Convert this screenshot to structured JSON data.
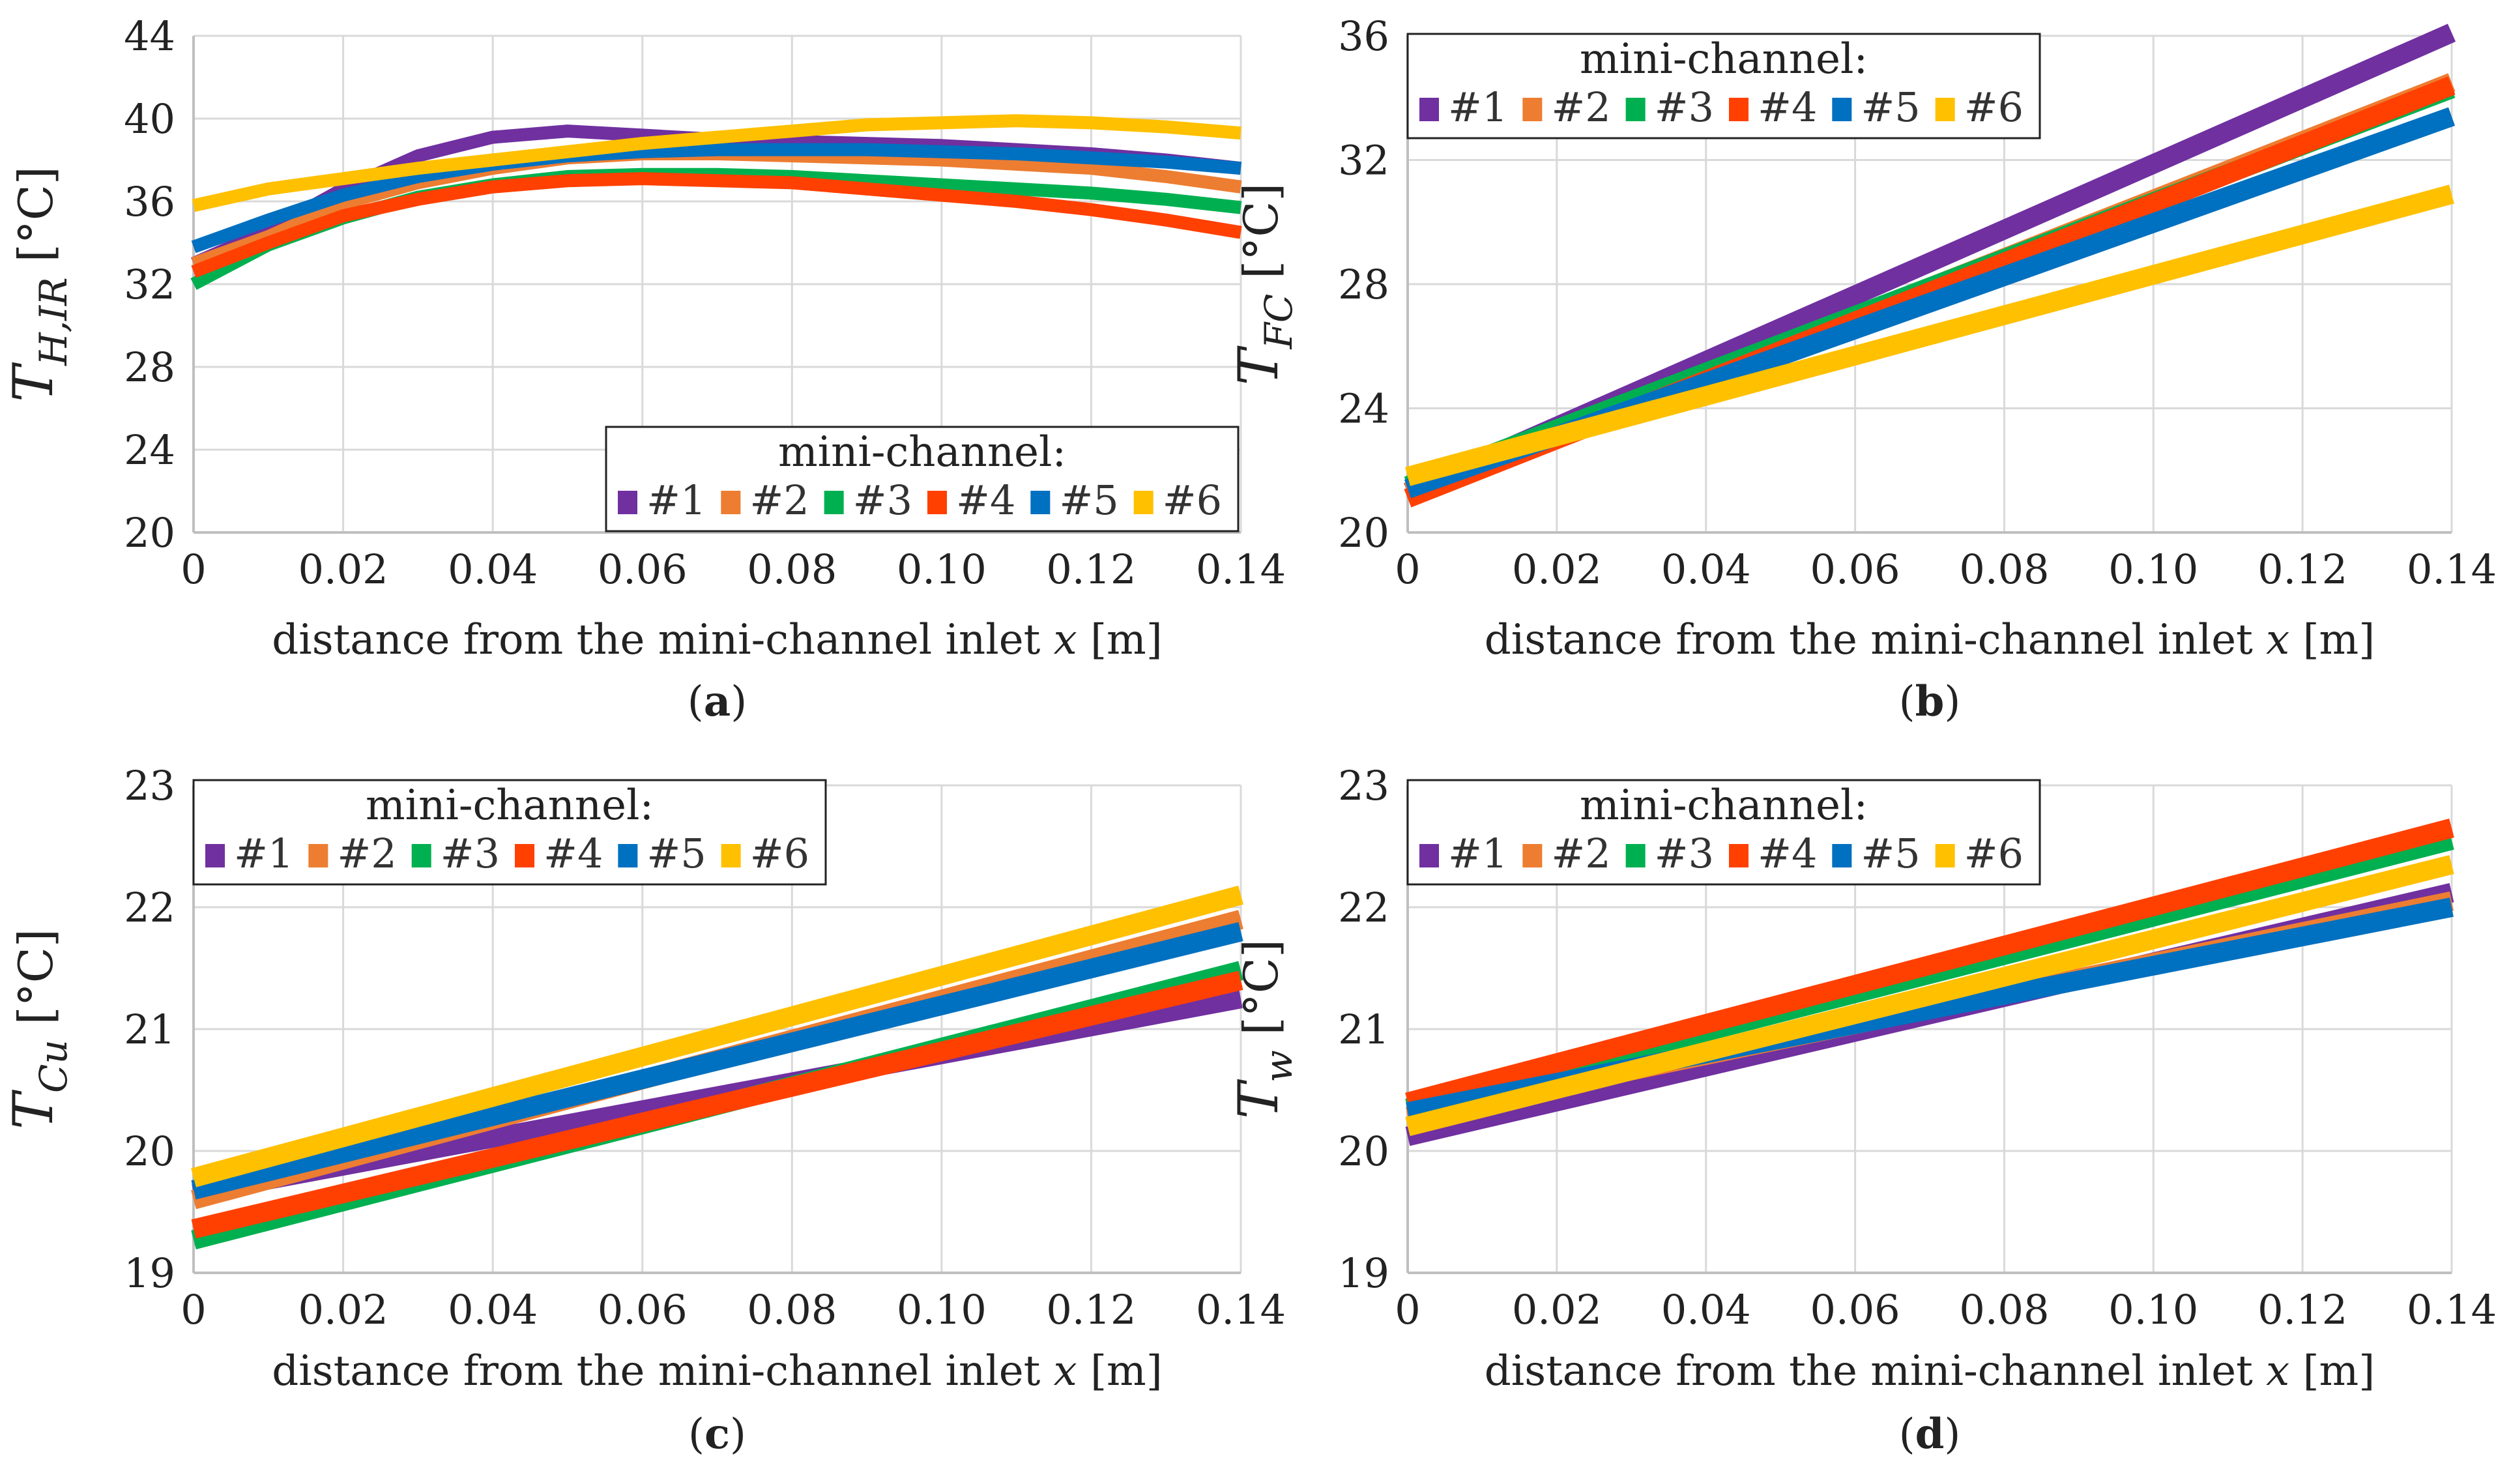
{
  "colors": {
    "s1": "#7030A0",
    "s2": "#ED7D31",
    "s3": "#00B050",
    "s4": "#FF4000",
    "s5": "#0070C0",
    "s6": "#FFC000",
    "grid": "#d9d9d9",
    "axis": "#bfbfbf"
  },
  "chart_data": [
    {
      "type": "line",
      "panel_label": "a",
      "title": "",
      "xlabel_prefix": "distance from the mini-channel inlet ",
      "xlabel_var": "x",
      "xlabel_unit": " [m]",
      "ylabel_main": "T",
      "ylabel_sub": "H,IR",
      "ylabel_unit": "[°C]",
      "xlim": [
        0,
        0.14
      ],
      "ylim": [
        20,
        44
      ],
      "xticks": [
        "0",
        "0.02",
        "0.04",
        "0.06",
        "0.08",
        "0.10",
        "0.12",
        "0.14"
      ],
      "yticks": [
        "20",
        "24",
        "28",
        "32",
        "36",
        "40",
        "44"
      ],
      "legend": {
        "title": "mini-channel:",
        "position": "bottom-right"
      },
      "series": [
        {
          "name": "#1",
          "x": [
            0,
            0.01,
            0.02,
            0.03,
            0.04,
            0.05,
            0.06,
            0.07,
            0.08,
            0.09,
            0.1,
            0.11,
            0.12,
            0.13,
            0.14
          ],
          "values": [
            33.0,
            34.6,
            36.6,
            38.2,
            39.1,
            39.4,
            39.2,
            39.0,
            38.9,
            38.8,
            38.7,
            38.5,
            38.3,
            38.0,
            37.6
          ]
        },
        {
          "name": "#2",
          "x": [
            0,
            0.01,
            0.02,
            0.03,
            0.04,
            0.05,
            0.06,
            0.07,
            0.08,
            0.09,
            0.1,
            0.11,
            0.12,
            0.13,
            0.14
          ],
          "values": [
            33.0,
            34.3,
            35.9,
            36.9,
            37.6,
            38.1,
            38.3,
            38.3,
            38.2,
            38.1,
            38.0,
            37.8,
            37.6,
            37.2,
            36.7
          ]
        },
        {
          "name": "#3",
          "x": [
            0,
            0.01,
            0.02,
            0.03,
            0.04,
            0.05,
            0.06,
            0.07,
            0.08,
            0.09,
            0.1,
            0.11,
            0.12,
            0.13,
            0.14
          ],
          "values": [
            32.0,
            33.9,
            35.2,
            36.2,
            36.8,
            37.2,
            37.3,
            37.3,
            37.2,
            37.0,
            36.8,
            36.6,
            36.4,
            36.1,
            35.7
          ]
        },
        {
          "name": "#4",
          "x": [
            0,
            0.01,
            0.02,
            0.03,
            0.04,
            0.05,
            0.06,
            0.07,
            0.08,
            0.09,
            0.1,
            0.11,
            0.12,
            0.13,
            0.14
          ],
          "values": [
            32.6,
            34.0,
            35.3,
            36.1,
            36.7,
            37.0,
            37.1,
            37.0,
            36.9,
            36.6,
            36.3,
            36.0,
            35.6,
            35.1,
            34.5
          ]
        },
        {
          "name": "#5",
          "x": [
            0,
            0.01,
            0.02,
            0.03,
            0.04,
            0.05,
            0.06,
            0.07,
            0.08,
            0.09,
            0.1,
            0.11,
            0.12,
            0.13,
            0.14
          ],
          "values": [
            33.8,
            35.1,
            36.3,
            37.2,
            37.8,
            38.2,
            38.4,
            38.5,
            38.5,
            38.5,
            38.4,
            38.3,
            38.1,
            37.9,
            37.6
          ]
        },
        {
          "name": "#6",
          "x": [
            0,
            0.01,
            0.02,
            0.03,
            0.04,
            0.05,
            0.06,
            0.07,
            0.08,
            0.09,
            0.1,
            0.11,
            0.12,
            0.13,
            0.14
          ],
          "values": [
            35.8,
            36.6,
            37.1,
            37.6,
            38.0,
            38.4,
            38.8,
            39.1,
            39.4,
            39.7,
            39.8,
            39.9,
            39.8,
            39.6,
            39.3
          ]
        }
      ]
    },
    {
      "type": "line",
      "panel_label": "b",
      "title": "",
      "xlabel_prefix": "distance from the mini-channel inlet ",
      "xlabel_var": "x",
      "xlabel_unit": " [m]",
      "ylabel_main": "T",
      "ylabel_sub": "FC",
      "ylabel_unit": "[°C]",
      "xlim": [
        0,
        0.14
      ],
      "ylim": [
        20,
        36
      ],
      "xticks": [
        "0",
        "0.02",
        "0.04",
        "0.06",
        "0.08",
        "0.10",
        "0.12",
        "0.14"
      ],
      "yticks": [
        "20",
        "24",
        "28",
        "32",
        "36"
      ],
      "legend": {
        "title": "mini-channel:",
        "position": "top-left"
      },
      "series": [
        {
          "name": "#1",
          "x": [
            0,
            0.14
          ],
          "values": [
            21.3,
            36.1
          ]
        },
        {
          "name": "#2",
          "x": [
            0,
            0.14
          ],
          "values": [
            21.3,
            34.5
          ]
        },
        {
          "name": "#3",
          "x": [
            0,
            0.14
          ],
          "values": [
            21.5,
            34.3
          ]
        },
        {
          "name": "#4",
          "x": [
            0,
            0.14
          ],
          "values": [
            21.1,
            34.4
          ]
        },
        {
          "name": "#5",
          "x": [
            0,
            0.14
          ],
          "values": [
            21.4,
            33.4
          ]
        },
        {
          "name": "#6",
          "x": [
            0,
            0.14
          ],
          "values": [
            21.8,
            30.9
          ]
        }
      ]
    },
    {
      "type": "line",
      "panel_label": "c",
      "title": "",
      "xlabel_prefix": "distance from the mini-channel inlet ",
      "xlabel_var": "x",
      "xlabel_unit": " [m]",
      "ylabel_main": "T",
      "ylabel_sub": "Cu",
      "ylabel_unit": "[°C]",
      "xlim": [
        0,
        0.14
      ],
      "ylim": [
        19,
        23
      ],
      "xticks": [
        "0",
        "0.02",
        "0.04",
        "0.06",
        "0.08",
        "0.10",
        "0.12",
        "0.14"
      ],
      "yticks": [
        "19",
        "20",
        "21",
        "22",
        "23"
      ],
      "legend": {
        "title": "mini-channel:",
        "position": "top-left"
      },
      "series": [
        {
          "name": "#1",
          "x": [
            0,
            0.14
          ],
          "values": [
            19.65,
            21.25
          ]
        },
        {
          "name": "#2",
          "x": [
            0,
            0.14
          ],
          "values": [
            19.6,
            21.9
          ]
        },
        {
          "name": "#3",
          "x": [
            0,
            0.14
          ],
          "values": [
            19.27,
            21.48
          ]
        },
        {
          "name": "#4",
          "x": [
            0,
            0.14
          ],
          "values": [
            19.36,
            21.4
          ]
        },
        {
          "name": "#5",
          "x": [
            0,
            0.14
          ],
          "values": [
            19.68,
            21.8
          ]
        },
        {
          "name": "#6",
          "x": [
            0,
            0.14
          ],
          "values": [
            19.78,
            22.1
          ]
        }
      ]
    },
    {
      "type": "line",
      "panel_label": "d",
      "title": "",
      "xlabel_prefix": "distance from the mini-channel inlet ",
      "xlabel_var": "x",
      "xlabel_unit": " [m]",
      "ylabel_main": "T",
      "ylabel_sub": "w",
      "ylabel_unit": "[°C]",
      "xlim": [
        0,
        0.14
      ],
      "ylim": [
        19,
        23
      ],
      "xticks": [
        "0",
        "0.02",
        "0.04",
        "0.06",
        "0.08",
        "0.10",
        "0.12",
        "0.14"
      ],
      "yticks": [
        "19",
        "20",
        "21",
        "22",
        "23"
      ],
      "legend": {
        "title": "mini-channel:",
        "position": "top-left"
      },
      "series": [
        {
          "name": "#1",
          "x": [
            0,
            0.14
          ],
          "values": [
            20.12,
            22.12
          ]
        },
        {
          "name": "#2",
          "x": [
            0,
            0.14
          ],
          "values": [
            20.28,
            22.05
          ]
        },
        {
          "name": "#3",
          "x": [
            0,
            0.14
          ],
          "values": [
            20.35,
            22.55
          ]
        },
        {
          "name": "#4",
          "x": [
            0,
            0.14
          ],
          "values": [
            20.4,
            22.65
          ]
        },
        {
          "name": "#5",
          "x": [
            0,
            0.14
          ],
          "values": [
            20.32,
            22.0
          ]
        },
        {
          "name": "#6",
          "x": [
            0,
            0.14
          ],
          "values": [
            20.2,
            22.35
          ]
        }
      ]
    }
  ]
}
